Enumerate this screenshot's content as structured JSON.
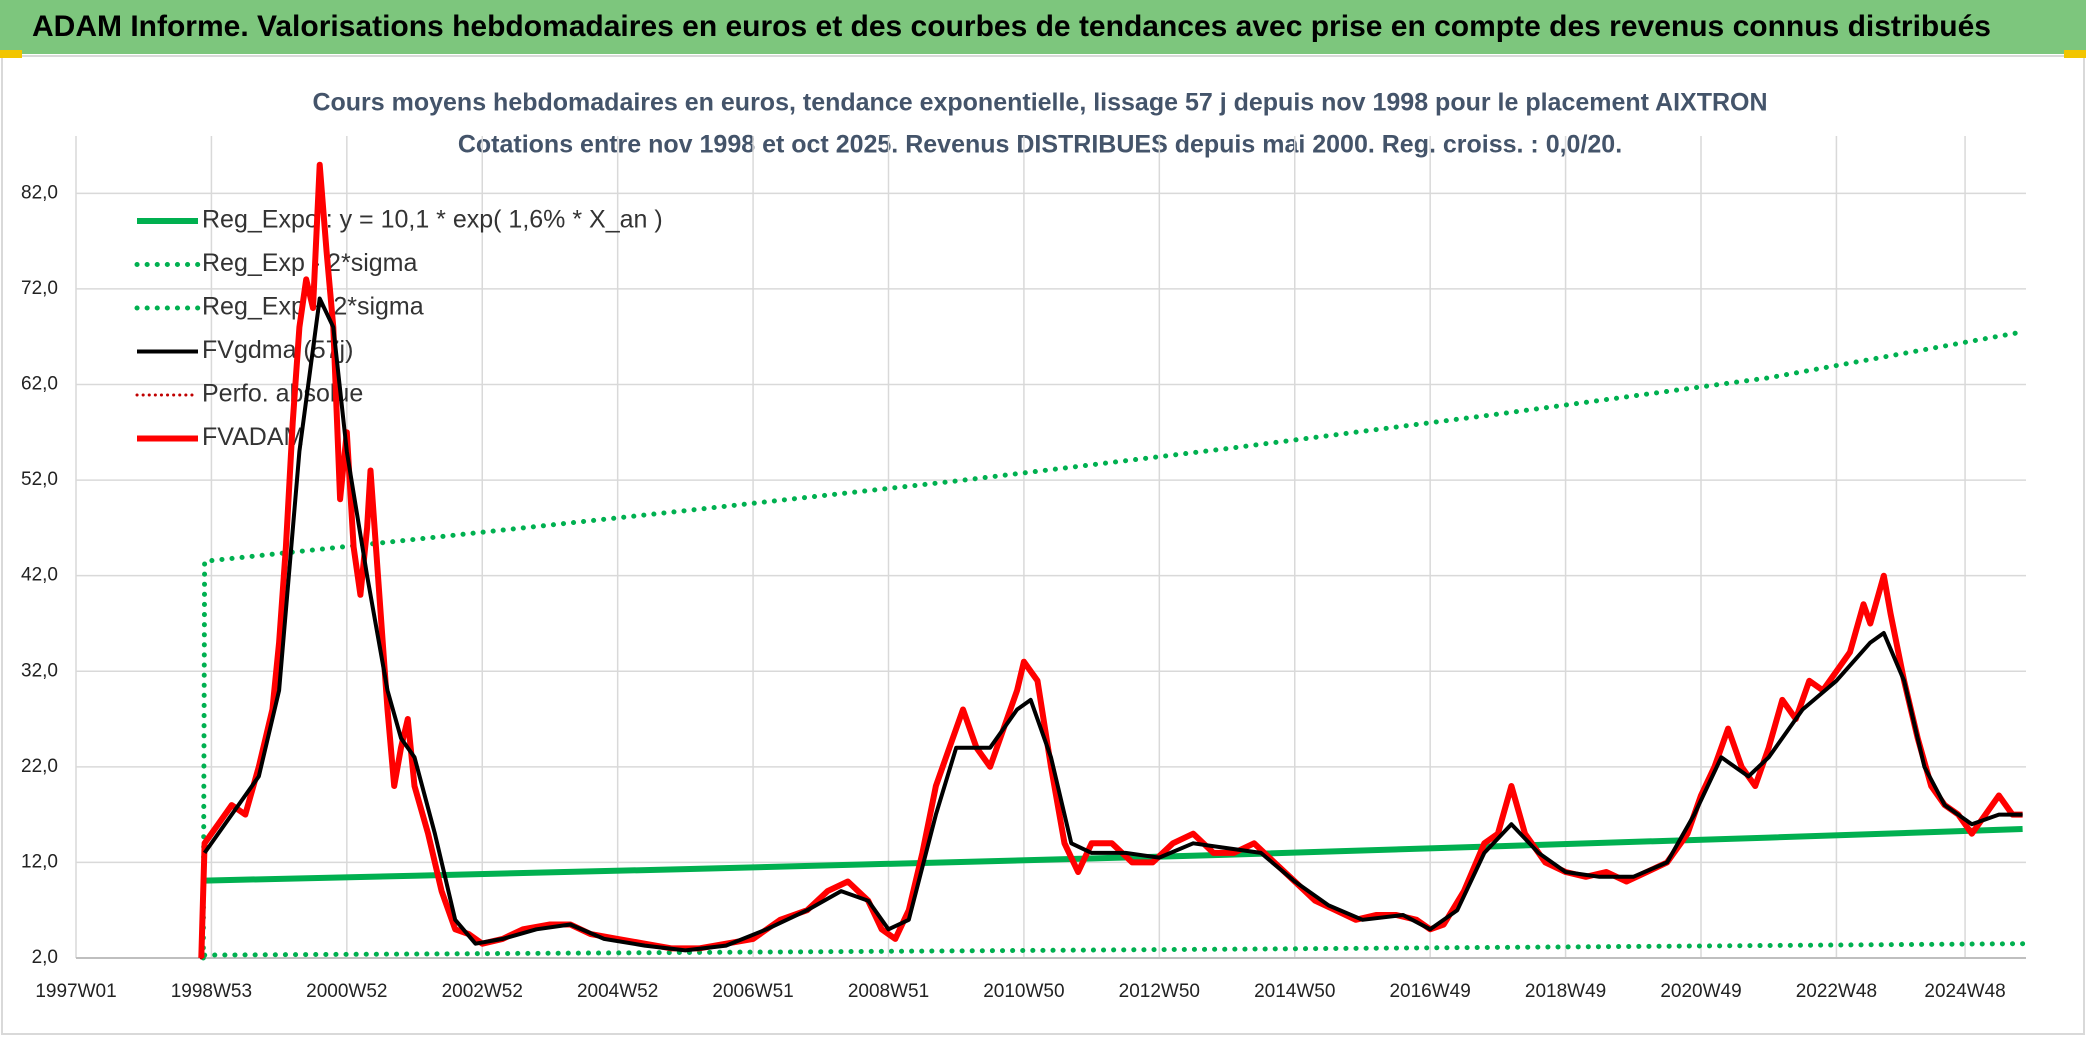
{
  "header": {
    "title": "ADAM Informe. Valorisations hebdomadaires en euros et des courbes de tendances avec prise en compte des revenus connus distribués"
  },
  "chart_data": {
    "type": "line",
    "title": "Cours moyens hebdomadaires en euros, tendance exponentielle, lissage 57 j depuis nov 1998 pour le placement AIXTRON",
    "subtitle": "Cotations entre nov 1998 et oct 2025. Revenus DISTRIBUES depuis mai 2000. Reg. croiss. : 0,0/20.",
    "xlim": [
      1997,
      2025.8
    ],
    "ylim": [
      2,
      88
    ],
    "xticks": [
      {
        "value": 1997,
        "label": "1997W01"
      },
      {
        "value": 1999,
        "label": "1998W53"
      },
      {
        "value": 2001,
        "label": "2000W52"
      },
      {
        "value": 2003,
        "label": "2002W52"
      },
      {
        "value": 2005,
        "label": "2004W52"
      },
      {
        "value": 2007,
        "label": "2006W51"
      },
      {
        "value": 2009,
        "label": "2008W51"
      },
      {
        "value": 2011,
        "label": "2010W50"
      },
      {
        "value": 2013,
        "label": "2012W50"
      },
      {
        "value": 2015,
        "label": "2014W50"
      },
      {
        "value": 2017,
        "label": "2016W49"
      },
      {
        "value": 2019,
        "label": "2018W49"
      },
      {
        "value": 2021,
        "label": "2020W49"
      },
      {
        "value": 2023,
        "label": "2022W48"
      },
      {
        "value": 2024.9,
        "label": "2024W48"
      }
    ],
    "yticks": [
      {
        "value": 2,
        "label": "2,0"
      },
      {
        "value": 12,
        "label": "12,0"
      },
      {
        "value": 22,
        "label": "22,0"
      },
      {
        "value": 32,
        "label": "32,0"
      },
      {
        "value": 42,
        "label": "42,0"
      },
      {
        "value": 52,
        "label": "52,0"
      },
      {
        "value": 62,
        "label": "62,0"
      },
      {
        "value": 72,
        "label": "72,0"
      },
      {
        "value": 82,
        "label": "82,0"
      }
    ],
    "grid": true,
    "legend": "top-left",
    "series": [
      {
        "name": "Reg_Expo : y = 10,1 * exp( 1,6% *  X_an )",
        "color": "#00b050",
        "style": "solid",
        "width": 6,
        "x": [
          1998.9,
          2002,
          2006,
          2010,
          2014,
          2018,
          2022,
          2025.75
        ],
        "values": [
          10.1,
          10.61,
          11.3,
          12.03,
          12.8,
          13.7,
          14.6,
          15.5
        ]
      },
      {
        "name": "Reg_Exp - 2*sigma",
        "color": "#00b050",
        "style": "dotted",
        "width": 5,
        "x": [
          1998.9,
          2002,
          2006,
          2010,
          2014,
          2018,
          2022,
          2025.75
        ],
        "values": [
          2.3,
          2.42,
          2.58,
          2.74,
          2.92,
          3.11,
          3.31,
          3.5
        ]
      },
      {
        "name": "Reg_Exp + 2*sigma",
        "color": "#00b050",
        "style": "dotted",
        "width": 5,
        "x": [
          1998.88,
          1998.9,
          2002,
          2006,
          2010,
          2014,
          2018,
          2022,
          2025.75
        ],
        "values": [
          2,
          43.5,
          45.8,
          48.8,
          51.9,
          55.3,
          58.9,
          62.7,
          67.5
        ]
      },
      {
        "name": "FVgdma (57j)",
        "color": "#000000",
        "style": "solid",
        "width": 4,
        "x": [
          1998.9,
          1999.3,
          1999.7,
          2000.0,
          2000.3,
          2000.6,
          2000.8,
          2001.0,
          2001.3,
          2001.6,
          2001.8,
          2002.0,
          2002.3,
          2002.6,
          2002.9,
          2003.3,
          2003.8,
          2004.3,
          2004.8,
          2005.4,
          2006.0,
          2006.6,
          2007.2,
          2007.8,
          2008.3,
          2008.7,
          2009.0,
          2009.3,
          2009.7,
          2010.0,
          2010.5,
          2010.9,
          2011.1,
          2011.4,
          2011.7,
          2012.0,
          2012.5,
          2013.0,
          2013.5,
          2014.0,
          2014.5,
          2015.0,
          2015.5,
          2016.0,
          2016.6,
          2017.0,
          2017.4,
          2017.8,
          2018.2,
          2018.6,
          2019.0,
          2019.5,
          2020.0,
          2020.5,
          2020.9,
          2021.3,
          2021.7,
          2022.0,
          2022.5,
          2023.0,
          2023.5,
          2023.7,
          2024.0,
          2024.3,
          2024.6,
          2025.0,
          2025.4,
          2025.75
        ],
        "values": [
          13,
          17,
          21,
          30,
          55,
          71,
          68,
          55,
          42,
          30,
          25,
          23,
          15,
          6,
          3.5,
          4,
          5,
          5.5,
          4,
          3.3,
          2.8,
          3.3,
          5,
          7,
          9,
          8,
          5,
          6,
          17,
          24,
          24,
          28,
          29,
          23,
          14,
          13,
          13,
          12.5,
          14,
          13.5,
          13,
          10,
          7.5,
          6,
          6.5,
          5,
          7,
          13,
          16,
          13,
          11,
          10.5,
          10.5,
          12,
          17,
          23,
          21,
          23,
          28,
          31,
          35,
          36,
          31,
          22,
          18,
          16,
          17,
          17
        ]
      },
      {
        "name": "Perfo. absolue",
        "color": "#c00000",
        "style": "dotted",
        "width": 3,
        "x": [
          1998.85,
          1998.9,
          1999.1,
          1999.3,
          1999.5,
          1999.7,
          1999.9,
          2000.0,
          2000.1,
          2000.2,
          2000.3,
          2000.4,
          2000.5,
          2000.6,
          2000.7,
          2000.8,
          2000.9,
          2001.0,
          2001.1,
          2001.2,
          2001.3,
          2001.35,
          2001.5,
          2001.6,
          2001.7,
          2001.8,
          2001.9,
          2002.0,
          2002.2,
          2002.4,
          2002.6,
          2002.8,
          2003.0,
          2003.3,
          2003.6,
          2004.0,
          2004.3,
          2004.6,
          2005.0,
          2005.4,
          2005.8,
          2006.2,
          2006.6,
          2007.0,
          2007.4,
          2007.8,
          2008.1,
          2008.4,
          2008.7,
          2008.9,
          2009.1,
          2009.3,
          2009.5,
          2009.7,
          2009.9,
          2010.1,
          2010.3,
          2010.5,
          2010.7,
          2010.9,
          2011.0,
          2011.2,
          2011.4,
          2011.6,
          2011.8,
          2012.0,
          2012.3,
          2012.6,
          2012.9,
          2013.2,
          2013.5,
          2013.8,
          2014.1,
          2014.4,
          2014.7,
          2015.0,
          2015.3,
          2015.6,
          2015.9,
          2016.2,
          2016.5,
          2016.8,
          2017.0,
          2017.2,
          2017.5,
          2017.8,
          2018.0,
          2018.2,
          2018.4,
          2018.7,
          2019.0,
          2019.3,
          2019.6,
          2019.9,
          2020.2,
          2020.5,
          2020.8,
          2021.0,
          2021.2,
          2021.4,
          2021.6,
          2021.8,
          2022.0,
          2022.2,
          2022.4,
          2022.6,
          2022.8,
          2023.0,
          2023.2,
          2023.4,
          2023.5,
          2023.7,
          2023.8,
          2024.0,
          2024.2,
          2024.4,
          2024.6,
          2024.8,
          2025.0,
          2025.2,
          2025.4,
          2025.6,
          2025.75
        ],
        "values": [
          2,
          14,
          16,
          18,
          17,
          22,
          28,
          35,
          45,
          58,
          68,
          73,
          70,
          85,
          76,
          68,
          50,
          57,
          45,
          40,
          47,
          53,
          38,
          28,
          20,
          24,
          27,
          20,
          15,
          9,
          5,
          4.5,
          3.5,
          4,
          5,
          5.5,
          5.5,
          4.5,
          4,
          3.5,
          3,
          3,
          3.5,
          4,
          6,
          7,
          9,
          10,
          8,
          5,
          4,
          7,
          13,
          20,
          24,
          28,
          24,
          22,
          26,
          30,
          33,
          31,
          22,
          14,
          11,
          14,
          14,
          12,
          12,
          14,
          15,
          13,
          13,
          14,
          12,
          10,
          8,
          7,
          6,
          6.5,
          6.5,
          6,
          5,
          5.5,
          9,
          14,
          15,
          20,
          15,
          12,
          11,
          10.5,
          11,
          10,
          11,
          12,
          15,
          19,
          22,
          26,
          22,
          20,
          24,
          29,
          27,
          31,
          30,
          32,
          34,
          39,
          37,
          42,
          38,
          31,
          25,
          20,
          18,
          17,
          15,
          17,
          19,
          17,
          17
        ]
      },
      {
        "name": "FVADAM",
        "color": "#ff0000",
        "style": "solid",
        "width": 6,
        "x": [
          1998.85,
          1998.9,
          1999.1,
          1999.3,
          1999.5,
          1999.7,
          1999.9,
          2000.0,
          2000.1,
          2000.2,
          2000.3,
          2000.4,
          2000.5,
          2000.6,
          2000.7,
          2000.8,
          2000.9,
          2001.0,
          2001.1,
          2001.2,
          2001.3,
          2001.35,
          2001.5,
          2001.6,
          2001.7,
          2001.8,
          2001.9,
          2002.0,
          2002.2,
          2002.4,
          2002.6,
          2002.8,
          2003.0,
          2003.3,
          2003.6,
          2004.0,
          2004.3,
          2004.6,
          2005.0,
          2005.4,
          2005.8,
          2006.2,
          2006.6,
          2007.0,
          2007.4,
          2007.8,
          2008.1,
          2008.4,
          2008.7,
          2008.9,
          2009.1,
          2009.3,
          2009.5,
          2009.7,
          2009.9,
          2010.1,
          2010.3,
          2010.5,
          2010.7,
          2010.9,
          2011.0,
          2011.2,
          2011.4,
          2011.6,
          2011.8,
          2012.0,
          2012.3,
          2012.6,
          2012.9,
          2013.2,
          2013.5,
          2013.8,
          2014.1,
          2014.4,
          2014.7,
          2015.0,
          2015.3,
          2015.6,
          2015.9,
          2016.2,
          2016.5,
          2016.8,
          2017.0,
          2017.2,
          2017.5,
          2017.8,
          2018.0,
          2018.2,
          2018.4,
          2018.7,
          2019.0,
          2019.3,
          2019.6,
          2019.9,
          2020.2,
          2020.5,
          2020.8,
          2021.0,
          2021.2,
          2021.4,
          2021.6,
          2021.8,
          2022.0,
          2022.2,
          2022.4,
          2022.6,
          2022.8,
          2023.0,
          2023.2,
          2023.4,
          2023.5,
          2023.7,
          2023.8,
          2024.0,
          2024.2,
          2024.4,
          2024.6,
          2024.8,
          2025.0,
          2025.2,
          2025.4,
          2025.6,
          2025.75
        ],
        "values": [
          2,
          14,
          16,
          18,
          17,
          22,
          28,
          35,
          45,
          58,
          68,
          73,
          70,
          85,
          76,
          68,
          50,
          57,
          45,
          40,
          47,
          53,
          38,
          28,
          20,
          24,
          27,
          20,
          15,
          9,
          5,
          4.5,
          3.5,
          4,
          5,
          5.5,
          5.5,
          4.5,
          4,
          3.5,
          3,
          3,
          3.5,
          4,
          6,
          7,
          9,
          10,
          8,
          5,
          4,
          7,
          13,
          20,
          24,
          28,
          24,
          22,
          26,
          30,
          33,
          31,
          22,
          14,
          11,
          14,
          14,
          12,
          12,
          14,
          15,
          13,
          13,
          14,
          12,
          10,
          8,
          7,
          6,
          6.5,
          6.5,
          6,
          5,
          5.5,
          9,
          14,
          15,
          20,
          15,
          12,
          11,
          10.5,
          11,
          10,
          11,
          12,
          15,
          19,
          22,
          26,
          22,
          20,
          24,
          29,
          27,
          31,
          30,
          32,
          34,
          39,
          37,
          42,
          38,
          31,
          25,
          20,
          18,
          17,
          15,
          17,
          19,
          17,
          17
        ]
      }
    ]
  }
}
